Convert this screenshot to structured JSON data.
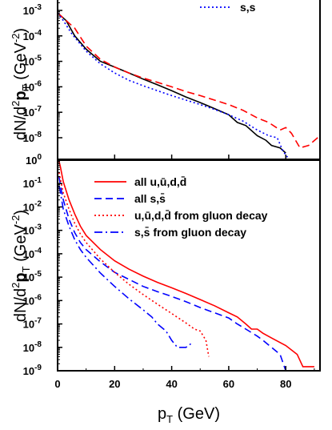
{
  "chart_data": [
    {
      "type": "line",
      "panel": "top",
      "ylabel": "dN/d²p_T (GeV⁻²)",
      "ylabel_parts": {
        "main": "dN/d",
        "sup": "2",
        "bold": "p",
        "sub": "T",
        "unit_open": " (GeV",
        "unit_sup": "-2",
        "unit_close": ")"
      },
      "yscale": "log",
      "ylim": [
        1,
        0.001
      ],
      "y_tick_labels": [
        {
          "base": "10",
          "exp": "0",
          "value": 1
        },
        {
          "base": "10",
          "exp": "-8",
          "value": 1e-08
        },
        {
          "base": "10",
          "exp": "-7",
          "value": 1e-07
        },
        {
          "base": "10",
          "exp": "-6",
          "value": 1e-06
        },
        {
          "base": "10",
          "exp": "-5",
          "value": 1e-05
        },
        {
          "base": "10",
          "exp": "-4",
          "value": 0.0001
        },
        {
          "base": "10",
          "exp": "-3",
          "value": 0.001
        }
      ],
      "xlim": [
        0,
        92
      ],
      "legend": [
        {
          "label": "s,s",
          "color": "#0000ff",
          "style": "dotted"
        }
      ],
      "series": [
        {
          "style": "solid",
          "color": "#000000",
          "points": [
            [
              0,
              0.0008
            ],
            [
              3,
              0.0004
            ],
            [
              6,
              0.0001
            ],
            [
              10,
              3e-05
            ],
            [
              15,
              1e-05
            ],
            [
              20,
              6e-06
            ],
            [
              25,
              3.5e-06
            ],
            [
              30,
              2e-06
            ],
            [
              35,
              1.2e-06
            ],
            [
              40,
              7e-07
            ],
            [
              45,
              4e-07
            ],
            [
              50,
              2.4e-07
            ],
            [
              55,
              1.4e-07
            ],
            [
              60,
              8e-08
            ],
            [
              63,
              4e-08
            ],
            [
              66,
              3e-08
            ],
            [
              70,
              1.2e-08
            ],
            [
              73,
              8e-09
            ],
            [
              75,
              5e-09
            ],
            [
              78,
              4e-09
            ],
            [
              80,
              2.5e-09
            ]
          ]
        },
        {
          "style": "dashed",
          "color": "#ff0000",
          "points": [
            [
              0,
              0.0008
            ],
            [
              3,
              0.0004
            ],
            [
              6,
              0.0002
            ],
            [
              10,
              4e-05
            ],
            [
              15,
              1.2e-05
            ],
            [
              20,
              6e-06
            ],
            [
              25,
              3.5e-06
            ],
            [
              30,
              2.2e-06
            ],
            [
              35,
              1.5e-06
            ],
            [
              40,
              1e-06
            ],
            [
              45,
              6.5e-07
            ],
            [
              50,
              4.5e-07
            ],
            [
              55,
              3e-07
            ],
            [
              60,
              2e-07
            ],
            [
              65,
              1.2e-07
            ],
            [
              70,
              6e-08
            ],
            [
              74,
              4e-08
            ],
            [
              78,
              2e-08
            ],
            [
              80,
              2.5e-08
            ],
            [
              82,
              1.5e-08
            ],
            [
              85,
              4e-09
            ],
            [
              88,
              5e-09
            ],
            [
              92,
              1.2e-08
            ]
          ]
        },
        {
          "style": "dotted",
          "color": "#0000ff",
          "points": [
            [
              0,
              0.0008
            ],
            [
              2,
              0.0004
            ],
            [
              5,
              0.00012
            ],
            [
              10,
              2.5e-05
            ],
            [
              15,
              8e-06
            ],
            [
              20,
              3.5e-06
            ],
            [
              25,
              1.8e-06
            ],
            [
              30,
              1.1e-06
            ],
            [
              35,
              7e-07
            ],
            [
              40,
              4.5e-07
            ],
            [
              45,
              3e-07
            ],
            [
              50,
              2e-07
            ],
            [
              55,
              1.3e-07
            ],
            [
              60,
              8e-08
            ],
            [
              65,
              4.5e-08
            ],
            [
              70,
              2e-08
            ],
            [
              74,
              1.2e-08
            ],
            [
              77,
              1e-08
            ],
            [
              79,
              3e-09
            ],
            [
              81,
              1.5e-09
            ]
          ]
        }
      ]
    },
    {
      "type": "line",
      "panel": "bottom",
      "xlabel": "p_T (GeV)",
      "xlabel_parts": {
        "main": "p",
        "sub": "T",
        "rest": " (GeV)"
      },
      "ylabel": "dN/d²p_T (GeV⁻²)",
      "ylabel_parts": {
        "main": "dN/d",
        "sup": "2",
        "bold": "p",
        "sub": "T",
        "unit_open": " (GeV",
        "unit_sup": "-2",
        "unit_close": ")"
      },
      "yscale": "log",
      "ylim": [
        1e-09,
        1
      ],
      "y_tick_labels": [
        {
          "base": "10",
          "exp": "-9",
          "value": 1e-09
        },
        {
          "base": "10",
          "exp": "-8",
          "value": 1e-08
        },
        {
          "base": "10",
          "exp": "-7",
          "value": 1e-07
        },
        {
          "base": "10",
          "exp": "-6",
          "value": 1e-06
        },
        {
          "base": "10",
          "exp": "-5",
          "value": 1e-05
        },
        {
          "base": "10",
          "exp": "-4",
          "value": 0.0001
        },
        {
          "base": "10",
          "exp": "-3",
          "value": 0.001
        },
        {
          "base": "10",
          "exp": "-2",
          "value": 0.01
        },
        {
          "base": "10",
          "exp": "-1",
          "value": 0.1
        }
      ],
      "top_tick_label": {
        "base": "10",
        "exp": "0",
        "value": 1
      },
      "xlim": [
        0,
        92
      ],
      "x_tick_labels": [
        {
          "text": "0",
          "value": 0
        },
        {
          "text": "20",
          "value": 20
        },
        {
          "text": "40",
          "value": 40
        },
        {
          "text": "60",
          "value": 60
        },
        {
          "text": "80",
          "value": 80
        }
      ],
      "legend": [
        {
          "label": "all u,ū,d,d̄",
          "color": "#ff0000",
          "style": "solid"
        },
        {
          "label": "all s,s̄",
          "color": "#0000ff",
          "style": "dashed"
        },
        {
          "label": "u,ū,d,d̄ from gluon decay",
          "color": "#ff0000",
          "style": "dotted"
        },
        {
          "label": "s,s̄ from gluon decay",
          "color": "#0000ff",
          "style": "dashdot"
        }
      ],
      "series": [
        {
          "name": "all u,ū,d,d̄",
          "style": "solid",
          "color": "#ff0000",
          "points": [
            [
              0.5,
              0.9
            ],
            [
              1,
              0.5
            ],
            [
              2,
              0.12
            ],
            [
              4,
              0.02
            ],
            [
              6,
              0.005
            ],
            [
              8,
              0.0015
            ],
            [
              10,
              0.0006
            ],
            [
              15,
              0.00015
            ],
            [
              20,
              5e-05
            ],
            [
              25,
              2.2e-05
            ],
            [
              30,
              1.1e-05
            ],
            [
              35,
              6e-06
            ],
            [
              40,
              3.5e-06
            ],
            [
              45,
              2e-06
            ],
            [
              50,
              1.1e-06
            ],
            [
              55,
              6e-07
            ],
            [
              60,
              3e-07
            ],
            [
              63,
              2e-07
            ],
            [
              66,
              1e-07
            ],
            [
              68,
              6e-08
            ],
            [
              70,
              6e-08
            ],
            [
              72,
              4e-08
            ],
            [
              75,
              2.5e-08
            ],
            [
              80,
              1.2e-08
            ],
            [
              84,
              5e-09
            ],
            [
              86,
              1.5e-09
            ],
            [
              90,
              1.5e-09
            ]
          ]
        },
        {
          "name": "all s,s̄",
          "style": "dashed",
          "color": "#0000ff",
          "points": [
            [
              0.5,
              0.2
            ],
            [
              1,
              0.08
            ],
            [
              2,
              0.02
            ],
            [
              4,
              0.003
            ],
            [
              6,
              0.0008
            ],
            [
              8,
              0.0003
            ],
            [
              10,
              0.00015
            ],
            [
              15,
              4.5e-05
            ],
            [
              20,
              1.6e-05
            ],
            [
              25,
              8e-06
            ],
            [
              30,
              4e-06
            ],
            [
              35,
              2.4e-06
            ],
            [
              40,
              1.5e-06
            ],
            [
              45,
              9e-07
            ],
            [
              50,
              5e-07
            ],
            [
              55,
              3e-07
            ],
            [
              60,
              1.8e-07
            ],
            [
              63,
              1e-07
            ],
            [
              66,
              6e-08
            ],
            [
              70,
              3e-08
            ],
            [
              72,
              2e-08
            ],
            [
              75,
              1e-08
            ],
            [
              78,
              5e-09
            ],
            [
              80,
              1e-09
            ]
          ]
        },
        {
          "name": "u,ū,d,d̄ from gluon decay",
          "style": "dotted",
          "color": "#ff0000",
          "points": [
            [
              0.5,
              0.3
            ],
            [
              1,
              0.15
            ],
            [
              2,
              0.04
            ],
            [
              4,
              0.008
            ],
            [
              6,
              0.002
            ],
            [
              8,
              0.0007
            ],
            [
              10,
              0.0003
            ],
            [
              15,
              6e-05
            ],
            [
              20,
              1.6e-05
            ],
            [
              25,
              5e-06
            ],
            [
              30,
              1.8e-06
            ],
            [
              35,
              7e-07
            ],
            [
              40,
              2.8e-07
            ],
            [
              45,
              1.1e-07
            ],
            [
              48,
              6e-08
            ],
            [
              50,
              5e-08
            ],
            [
              52,
              2e-08
            ],
            [
              53,
              4e-09
            ]
          ]
        },
        {
          "name": "s,s̄ from gluon decay",
          "style": "dashdot",
          "color": "#0000ff",
          "points": [
            [
              0.5,
              0.08
            ],
            [
              1,
              0.04
            ],
            [
              2,
              0.008
            ],
            [
              4,
              0.0015
            ],
            [
              6,
              0.0004
            ],
            [
              8,
              0.00015
            ],
            [
              10,
              7e-05
            ],
            [
              15,
              1.5e-05
            ],
            [
              20,
              4e-06
            ],
            [
              25,
              1.2e-06
            ],
            [
              30,
              4e-07
            ],
            [
              33,
              2e-07
            ],
            [
              35,
              1e-07
            ],
            [
              38,
              5e-08
            ],
            [
              40,
              2e-08
            ],
            [
              42,
              1e-08
            ],
            [
              45,
              1e-08
            ],
            [
              47,
              1.5e-08
            ]
          ]
        }
      ]
    }
  ]
}
